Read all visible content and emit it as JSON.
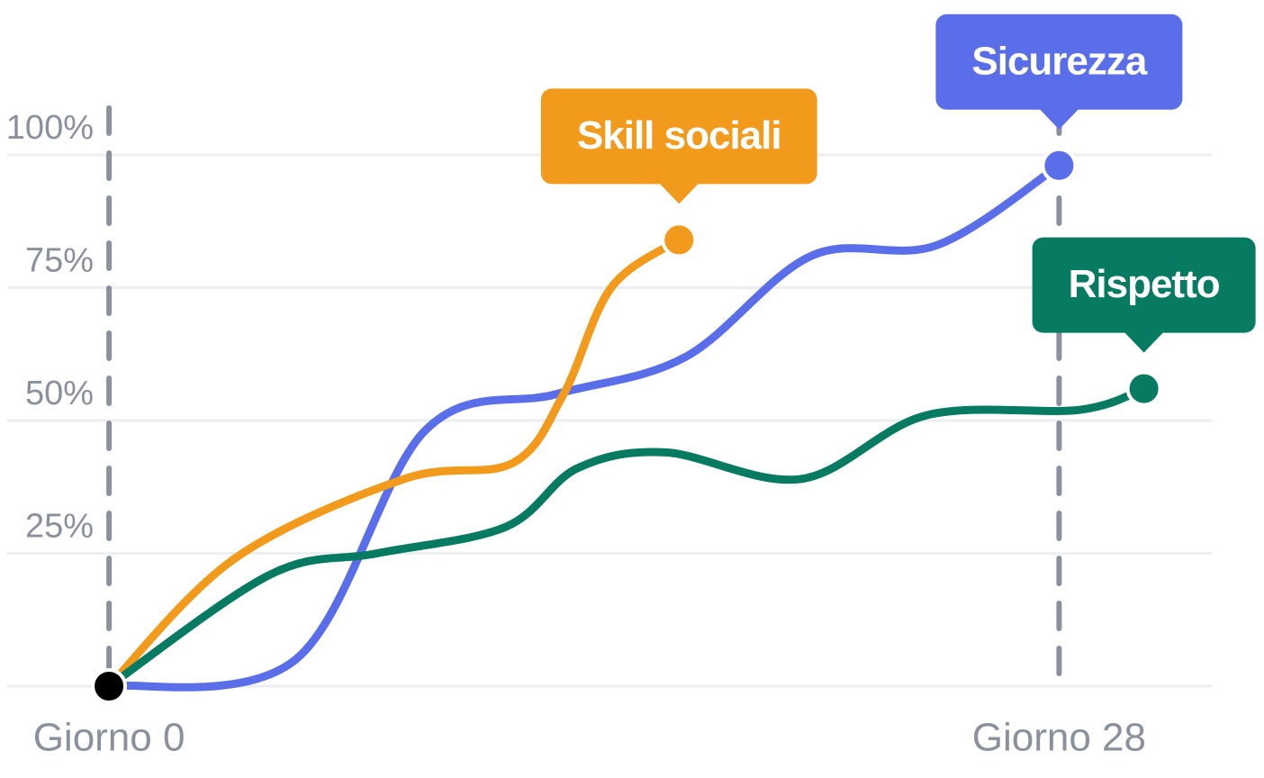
{
  "chart_data": {
    "type": "line",
    "xlim": [
      -3,
      32.5
    ],
    "ylim": [
      0,
      100
    ],
    "xticks": [
      {
        "value": 0,
        "label": "Giorno 0"
      },
      {
        "value": 28,
        "label": "Giorno 28"
      }
    ],
    "yticks": [
      {
        "value": 25,
        "label": "25%"
      },
      {
        "value": 50,
        "label": "50%"
      },
      {
        "value": 75,
        "label": "75%"
      },
      {
        "value": 100,
        "label": "100%"
      }
    ],
    "grid": true,
    "series": [
      {
        "name": "Sicurezza",
        "color": "#5a6eea",
        "x": [
          0,
          5.5,
          9.3,
          13.2,
          17,
          20.7,
          24.4,
          28
        ],
        "values": [
          0,
          5,
          48,
          55,
          62,
          81,
          83,
          98
        ]
      },
      {
        "name": "Skill sociali",
        "color": "#f29a1c",
        "x": [
          0,
          3.7,
          8.7,
          11.9,
          13.4,
          14.8,
          16.8
        ],
        "values": [
          0,
          24,
          39,
          42,
          55,
          75,
          84
        ]
      },
      {
        "name": "Rispetto",
        "color": "#077a62",
        "x": [
          0,
          4.75,
          7.9,
          11.7,
          13.8,
          16.4,
          20.4,
          24.1,
          28.6,
          30.5
        ],
        "values": [
          0,
          21,
          25,
          30,
          41,
          44,
          39,
          51,
          52,
          56
        ]
      }
    ]
  }
}
